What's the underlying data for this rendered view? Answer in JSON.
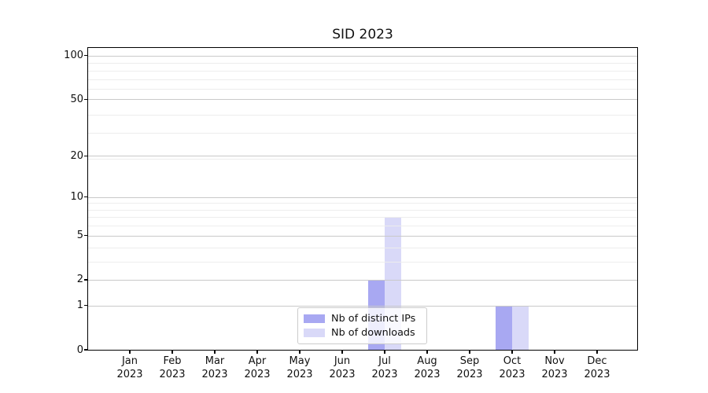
{
  "chart_data": {
    "type": "bar",
    "title": "SID 2023",
    "categories": [
      "Jan 2023",
      "Feb 2023",
      "Mar 2023",
      "Apr 2023",
      "May 2023",
      "Jun 2023",
      "Jul 2023",
      "Aug 2023",
      "Sep 2023",
      "Oct 2023",
      "Nov 2023",
      "Dec 2023"
    ],
    "month_labels": [
      "Jan",
      "Feb",
      "Mar",
      "Apr",
      "May",
      "Jun",
      "Jul",
      "Aug",
      "Sep",
      "Oct",
      "Nov",
      "Dec"
    ],
    "year_label": "2023",
    "series": [
      {
        "name": "Nb of distinct IPs",
        "color": "#a8a8f2",
        "values": [
          0,
          0,
          0,
          0,
          0,
          0,
          2,
          0,
          0,
          1,
          0,
          0
        ]
      },
      {
        "name": "Nb of downloads",
        "color": "#d9d9f8",
        "values": [
          0,
          0,
          0,
          0,
          0,
          0,
          7,
          0,
          0,
          1,
          0,
          0
        ]
      }
    ],
    "xlabel": "",
    "ylabel": "",
    "y_scale": "log(1+y)",
    "y_ticks": [
      0,
      1,
      2,
      5,
      10,
      20,
      50,
      100
    ],
    "y_tick_labels": [
      "0",
      "1",
      "2",
      "5",
      "10",
      "20",
      "50",
      "100"
    ],
    "ylim": [
      0,
      113
    ],
    "grid": "horizontal log gridlines (major darker, minor lighter)",
    "legend_position": "lower center"
  }
}
